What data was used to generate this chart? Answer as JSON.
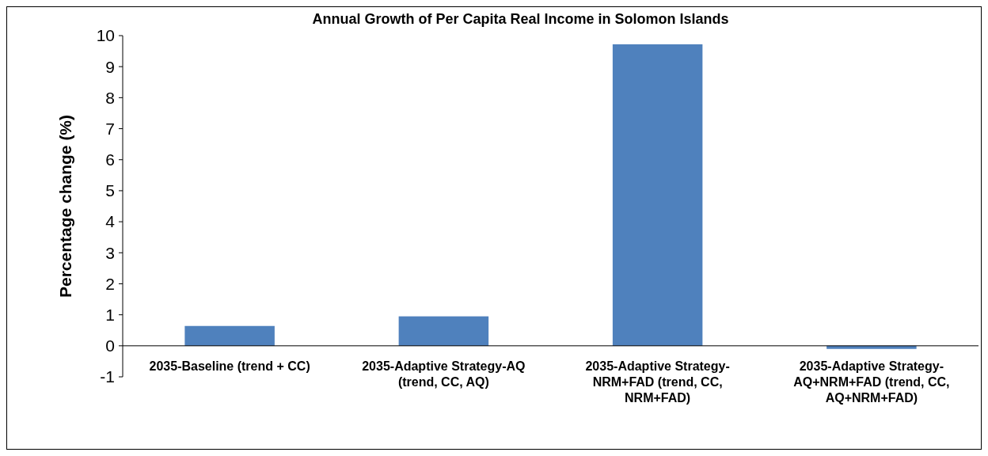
{
  "chart_data": {
    "type": "bar",
    "title": "Annual Growth of Per Capita Real Income in Solomon Islands",
    "ylabel": "Percentage change (%)",
    "categories": [
      "2035-Baseline (trend + CC)",
      "2035-Adaptive Strategy-AQ  (trend, CC, AQ)",
      "2035-Adaptive Strategy-NRM+FAD (trend, CC, NRM+FAD)",
      "2035-Adaptive Strategy-AQ+NRM+FAD (trend, CC, AQ+NRM+FAD)"
    ],
    "values": [
      0.64,
      0.95,
      9.72,
      -0.1
    ],
    "color": "#4f81bd",
    "ylim": [
      -1,
      10
    ],
    "yticks": [
      -1,
      0,
      1,
      2,
      3,
      4,
      5,
      6,
      7,
      8,
      9,
      10
    ],
    "grid": false
  }
}
